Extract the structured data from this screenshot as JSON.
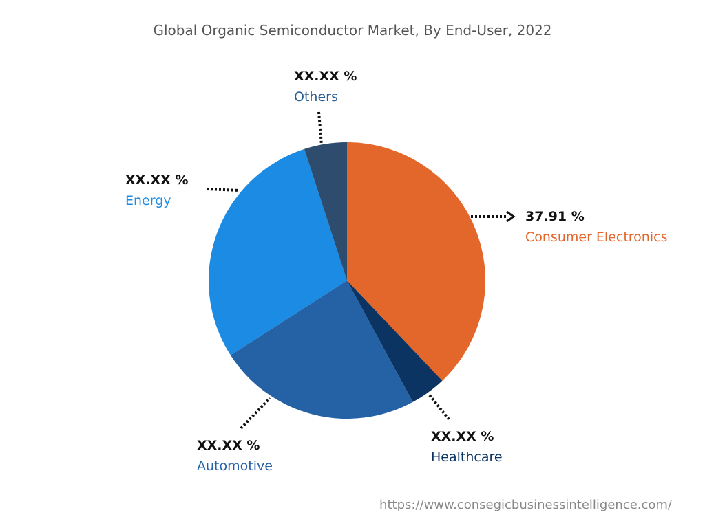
{
  "chart_data": {
    "type": "pie",
    "title": "Global Organic Semiconductor Market, By End-User, 2022",
    "slices": [
      {
        "label": "Consumer Electronics",
        "value": 37.91,
        "display": "37.91 %",
        "color": "#E3672A",
        "label_color": "#E3672A"
      },
      {
        "label": "Healthcare",
        "value": 4.2,
        "display": "XX.XX %",
        "color": "#0B3462",
        "label_color": "#0B3462"
      },
      {
        "label": "Automotive",
        "value": 23.8,
        "display": "XX.XX %",
        "color": "#2562A5",
        "label_color": "#2562A5"
      },
      {
        "label": "Energy",
        "value": 29.1,
        "display": "XX.XX %",
        "color": "#1C8BE3",
        "label_color": "#1C8BE3"
      },
      {
        "label": "Others",
        "value": 4.99,
        "display": "XX.XX %",
        "color": "#2E4C6D",
        "label_color": "#2A5E92"
      }
    ],
    "start_angle": "12 o'clock",
    "direction": "clockwise"
  },
  "footer": {
    "url": "https://www.consegicbusinessintelligence.com/"
  }
}
